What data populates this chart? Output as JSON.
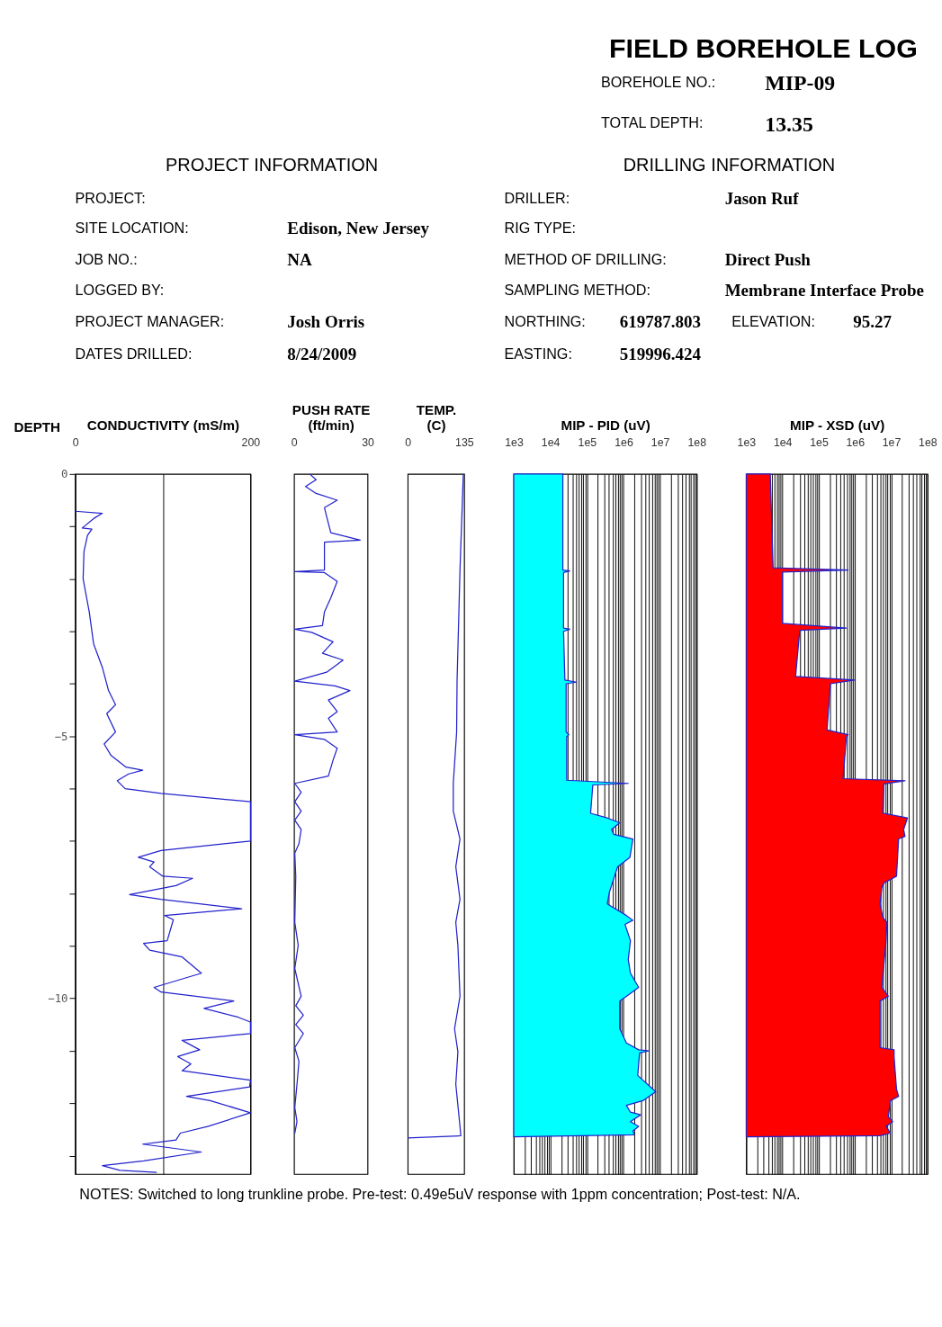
{
  "chart_data": [
    {
      "type": "other",
      "title": "FIELD BOREHOLE LOG",
      "annotations": [
        "BOREHOLE NO.:",
        "MIP-09",
        "TOTAL DEPTH:",
        "13.35",
        "PROJECT INFORMATION",
        "DRILLING INFORMATION",
        "PROJECT:",
        "SITE LOCATION:",
        "Edison, New Jersey",
        "JOB NO.:",
        "NA",
        "LOGGED BY:",
        "PROJECT MANAGER:",
        "Josh Orris",
        "DATES DRILLED:",
        "8/24/2009",
        "DRILLER:",
        "Jason Ruf",
        "RIG TYPE:",
        "METHOD OF DRILLING:",
        "Direct Push",
        "SAMPLING METHOD:",
        "Membrane Interface Probe",
        "NORTHING:",
        "619787.803",
        "ELEVATION:",
        "95.27",
        "EASTING:",
        "519996.424",
        "NOTES:  Switched to long trunkline probe.  Pre-test: 0.49e5uV response with 1ppm concentration; Post-test: N/A."
      ]
    },
    {
      "type": "line",
      "orientation": "horizontal",
      "xlabel": "CONDUCTIVITY (mS/m)",
      "ylabel": "DEPTH",
      "xlim": [
        0,
        200
      ],
      "xticks": [
        0,
        {
          "value": 100,
          "label": null
        },
        200
      ],
      "ylim": [
        -13.35,
        0
      ],
      "yticks": [
        0,
        {
          "value": -1,
          "label": null
        },
        {
          "value": -2,
          "label": null
        },
        {
          "value": -3,
          "label": null
        },
        {
          "value": -4,
          "label": null
        },
        -5,
        {
          "value": -6,
          "label": null
        },
        {
          "value": -7,
          "label": null
        },
        {
          "value": -8,
          "label": null
        },
        {
          "value": -9,
          "label": null
        },
        -10,
        {
          "value": -11,
          "label": null
        },
        {
          "value": -12,
          "label": null
        },
        {
          "value": -13,
          "label": null
        }
      ],
      "grid": "x",
      "series": [
        {
          "color": "#2222cc",
          "x": [
            -0.71,
            -0.75,
            -0.85,
            -1.03,
            -1.05,
            -1.17,
            -1.48,
            -2.0,
            -2.63,
            -3.24,
            -3.69,
            -4.13,
            -4.4,
            -4.57,
            -4.92,
            -5.15,
            -5.37,
            -5.59,
            -5.65,
            -5.72,
            -5.85,
            -6.0,
            -6.09,
            -6.25,
            -7.0,
            -7.18,
            -7.31,
            -7.4,
            -7.49,
            -7.67,
            -7.71,
            -7.85,
            -8.02,
            -8.11,
            -8.29,
            -8.42,
            -8.5,
            -8.9,
            -8.95,
            -9.08,
            -9.21,
            -9.52,
            -9.79,
            -9.88,
            -10.05,
            -10.19,
            -10.36,
            -10.45,
            -10.67,
            -10.8,
            -10.98,
            -11.11,
            -11.25,
            -11.38,
            -11.56,
            -11.69,
            -11.87,
            -11.95,
            -12.18,
            -12.44,
            -12.57,
            -12.7,
            -12.78,
            -12.93,
            -13.1,
            -13.19,
            -13.28,
            -13.32
          ],
          "values": [
            0,
            31,
            21,
            8,
            19,
            14,
            10,
            9,
            16,
            21,
            31,
            38,
            46,
            36,
            46,
            33,
            41,
            58,
            77,
            61,
            48,
            57,
            98,
            200,
            200,
            98,
            72,
            90,
            85,
            100,
            134,
            115,
            62,
            98,
            190,
            102,
            112,
            105,
            78,
            85,
            122,
            144,
            90,
            98,
            181,
            147,
            186,
            200,
            200,
            122,
            142,
            117,
            132,
            122,
            200,
            199,
            127,
            154,
            200,
            152,
            120,
            115,
            77,
            144,
            78,
            31,
            51,
            93
          ]
        }
      ]
    },
    {
      "type": "line",
      "orientation": "horizontal",
      "xlabel": "PUSH RATE (ft/min)",
      "xlim": [
        0,
        30
      ],
      "xticks": [
        0,
        30
      ],
      "ylim": [
        -13.35,
        0
      ],
      "tick_labels": "x",
      "series": [
        {
          "color": "#2222cc",
          "x": [
            0,
            -0.11,
            -0.24,
            -0.37,
            -0.5,
            -0.64,
            -0.81,
            -1.12,
            -1.26,
            -1.3,
            -1.52,
            -1.83,
            -1.86,
            -1.88,
            -2.05,
            -2.36,
            -2.63,
            -2.89,
            -2.96,
            -3.02,
            -3.2,
            -3.42,
            -3.55,
            -3.78,
            -3.95,
            -4.04,
            -4.13,
            -4.31,
            -4.53,
            -4.66,
            -4.92,
            -4.97,
            -5.06,
            -5.23,
            -5.46,
            -5.76,
            -5.9,
            -6.07,
            -6.25,
            -6.43,
            -6.6,
            -6.78,
            -7.05,
            -7.23,
            -7.67,
            -8.55,
            -8.99,
            -9.43,
            -9.96,
            -10.14,
            -10.32,
            -10.5,
            -10.67,
            -10.94,
            -11.2,
            -11.64,
            -12.08,
            -12.35,
            -12.57
          ],
          "values": [
            6.4,
            9,
            4.7,
            9,
            17.6,
            12.4,
            13.3,
            15,
            27,
            12.4,
            12.4,
            12.4,
            0.3,
            12.4,
            17.6,
            15,
            12.4,
            11.6,
            0.3,
            7.2,
            15.9,
            11.6,
            20,
            13.3,
            0.3,
            16.7,
            22.8,
            14,
            17.6,
            14,
            17.6,
            0.3,
            12.4,
            17.6,
            15.9,
            14,
            0.3,
            2.9,
            0.3,
            2.9,
            0.3,
            2.9,
            2,
            0.3,
            0.7,
            0.3,
            1.7,
            0.3,
            2.9,
            0.7,
            3.8,
            0.7,
            3.8,
            0.3,
            2,
            1.2,
            0.3,
            1.2,
            0.3
          ]
        }
      ]
    },
    {
      "type": "line",
      "orientation": "horizontal",
      "xlabel": "TEMP. (C)",
      "xlim": [
        0,
        135
      ],
      "xticks": [
        0,
        135
      ],
      "ylim": [
        -13.35,
        0
      ],
      "tick_labels": "x",
      "series": [
        {
          "color": "#2222cc",
          "x": [
            0,
            -1.83,
            -3.95,
            -4.92,
            -5.9,
            -6.43,
            -6.96,
            -7.49,
            -8.11,
            -8.55,
            -8.99,
            -9.96,
            -10.58,
            -11.02,
            -11.64,
            -12.44,
            -12.62,
            -12.66
          ],
          "values": [
            133,
            125,
            118,
            117,
            109,
            109,
            125,
            115,
            125,
            115,
            120,
            125,
            112,
            120,
            115,
            125,
            127,
            0
          ]
        }
      ]
    },
    {
      "type": "area",
      "orientation": "horizontal",
      "xlabel": "MIP - PID (uV)",
      "log": "x",
      "xlim": [
        1000,
        100000000
      ],
      "ylim": [
        -13.35,
        0
      ],
      "tick_labels": "x",
      "grid": "x",
      "xticks": [
        {
          "value": 1000,
          "label": "1e3"
        },
        {
          "value": 2000,
          "label": null
        },
        {
          "value": 3000,
          "label": null
        },
        {
          "value": 4000,
          "label": null
        },
        {
          "value": 5000,
          "label": null
        },
        {
          "value": 6000,
          "label": null
        },
        {
          "value": 7000,
          "label": null
        },
        {
          "value": 8000,
          "label": null
        },
        {
          "value": 9000,
          "label": null
        },
        {
          "value": 10000,
          "label": "1e4"
        },
        {
          "value": 20000,
          "label": null
        },
        {
          "value": 30000,
          "label": null
        },
        {
          "value": 40000,
          "label": null
        },
        {
          "value": 50000,
          "label": null
        },
        {
          "value": 60000,
          "label": null
        },
        {
          "value": 70000,
          "label": null
        },
        {
          "value": 80000,
          "label": null
        },
        {
          "value": 90000,
          "label": null
        },
        {
          "value": 100000,
          "label": "1e5"
        },
        {
          "value": 200000,
          "label": null
        },
        {
          "value": 300000,
          "label": null
        },
        {
          "value": 400000,
          "label": null
        },
        {
          "value": 500000,
          "label": null
        },
        {
          "value": 600000,
          "label": null
        },
        {
          "value": 700000,
          "label": null
        },
        {
          "value": 800000,
          "label": null
        },
        {
          "value": 900000,
          "label": null
        },
        {
          "value": 1000000,
          "label": "1e6"
        },
        {
          "value": 2000000,
          "label": null
        },
        {
          "value": 3000000,
          "label": null
        },
        {
          "value": 4000000,
          "label": null
        },
        {
          "value": 5000000,
          "label": null
        },
        {
          "value": 6000000,
          "label": null
        },
        {
          "value": 7000000,
          "label": null
        },
        {
          "value": 8000000,
          "label": null
        },
        {
          "value": 9000000,
          "label": null
        },
        {
          "value": 10000000,
          "label": "1e7"
        },
        {
          "value": 20000000,
          "label": null
        },
        {
          "value": 30000000,
          "label": null
        },
        {
          "value": 40000000,
          "label": null
        },
        {
          "value": 50000000,
          "label": null
        },
        {
          "value": 60000000,
          "label": null
        },
        {
          "value": 70000000,
          "label": null
        },
        {
          "value": 80000000,
          "label": null
        },
        {
          "value": 90000000,
          "label": null
        },
        {
          "value": 100000000,
          "label": "1e8"
        }
      ],
      "series": [
        {
          "color": "#00ffff",
          "x": [
            0,
            -1.83,
            -1.85,
            -1.88,
            -2.94,
            -2.96,
            -3.0,
            -3.93,
            -3.97,
            -4.0,
            -4.92,
            -4.97,
            -5.01,
            -5.84,
            -5.9,
            -5.93,
            -6.47,
            -6.56,
            -6.65,
            -6.78,
            -6.87,
            -6.96,
            -7.31,
            -7.49,
            -7.98,
            -8.2,
            -8.42,
            -8.51,
            -8.59,
            -8.9,
            -9.26,
            -9.52,
            -9.79,
            -9.96,
            -10.05,
            -10.58,
            -10.85,
            -10.98,
            -11.0,
            -11.04,
            -11.47,
            -11.56,
            -11.78,
            -11.95,
            -12.04,
            -12.17,
            -12.22,
            -12.35,
            -12.44,
            -12.53,
            -12.6,
            -12.64
          ],
          "values": [
            22000,
            22000,
            34000,
            23000,
            23000,
            34000,
            23000,
            25000,
            52000,
            27000,
            27000,
            32000,
            28000,
            28000,
            1350000,
            145000,
            126000,
            360000,
            790000,
            470000,
            540000,
            1800000,
            1500000,
            690000,
            410000,
            360000,
            1200000,
            1800000,
            1100000,
            1550000,
            1350000,
            1550000,
            2600000,
            1200000,
            790000,
            790000,
            1200000,
            2600000,
            5000000,
            2750000,
            2450000,
            3400000,
            7600000,
            3400000,
            1200000,
            1550000,
            2950000,
            1550000,
            2600000,
            1800000,
            2000000,
            1000
          ]
        }
      ]
    },
    {
      "type": "area",
      "orientation": "horizontal",
      "xlabel": "MIP - XSD (uV)",
      "log": "x",
      "xlim": [
        1000,
        100000000
      ],
      "ylim": [
        -13.35,
        0
      ],
      "tick_labels": "x",
      "grid": "x",
      "xticks": [
        {
          "value": 1000,
          "label": "1e3"
        },
        {
          "value": 2000,
          "label": null
        },
        {
          "value": 3000,
          "label": null
        },
        {
          "value": 4000,
          "label": null
        },
        {
          "value": 5000,
          "label": null
        },
        {
          "value": 6000,
          "label": null
        },
        {
          "value": 7000,
          "label": null
        },
        {
          "value": 8000,
          "label": null
        },
        {
          "value": 9000,
          "label": null
        },
        {
          "value": 10000,
          "label": "1e4"
        },
        {
          "value": 20000,
          "label": null
        },
        {
          "value": 30000,
          "label": null
        },
        {
          "value": 40000,
          "label": null
        },
        {
          "value": 50000,
          "label": null
        },
        {
          "value": 60000,
          "label": null
        },
        {
          "value": 70000,
          "label": null
        },
        {
          "value": 80000,
          "label": null
        },
        {
          "value": 90000,
          "label": null
        },
        {
          "value": 100000,
          "label": "1e5"
        },
        {
          "value": 200000,
          "label": null
        },
        {
          "value": 300000,
          "label": null
        },
        {
          "value": 400000,
          "label": null
        },
        {
          "value": 500000,
          "label": null
        },
        {
          "value": 600000,
          "label": null
        },
        {
          "value": 700000,
          "label": null
        },
        {
          "value": 800000,
          "label": null
        },
        {
          "value": 900000,
          "label": null
        },
        {
          "value": 1000000,
          "label": "1e6"
        },
        {
          "value": 2000000,
          "label": null
        },
        {
          "value": 3000000,
          "label": null
        },
        {
          "value": 4000000,
          "label": null
        },
        {
          "value": 5000000,
          "label": null
        },
        {
          "value": 6000000,
          "label": null
        },
        {
          "value": 7000000,
          "label": null
        },
        {
          "value": 8000000,
          "label": null
        },
        {
          "value": 9000000,
          "label": null
        },
        {
          "value": 10000000,
          "label": "1e7"
        },
        {
          "value": 20000000,
          "label": null
        },
        {
          "value": 30000000,
          "label": null
        },
        {
          "value": 40000000,
          "label": null
        },
        {
          "value": 50000000,
          "label": null
        },
        {
          "value": 60000000,
          "label": null
        },
        {
          "value": 70000000,
          "label": null
        },
        {
          "value": 80000000,
          "label": null
        },
        {
          "value": 90000000,
          "label": null
        },
        {
          "value": 100000000,
          "label": "1e8"
        }
      ],
      "series": [
        {
          "color": "#ff0000",
          "x": [
            0,
            -1.79,
            -1.83,
            -1.87,
            -2.85,
            -2.94,
            -2.98,
            -3.86,
            -3.93,
            -4.0,
            -4.88,
            -4.97,
            -5.01,
            -5.81,
            -5.85,
            -5.91,
            -6.47,
            -6.56,
            -6.78,
            -6.91,
            -6.96,
            -7.67,
            -7.8,
            -7.89,
            -8.2,
            -8.46,
            -8.55,
            -8.9,
            -9.79,
            -9.96,
            -10.05,
            -10.94,
            -10.98,
            -11.11,
            -11.73,
            -11.87,
            -11.95,
            -12.26,
            -12.35,
            -12.44,
            -12.57,
            -12.62,
            -12.64
          ],
          "values": [
            4600,
            5500,
            650000,
            10000,
            10000,
            580000,
            30000,
            23000,
            980000,
            210000,
            170000,
            650000,
            580000,
            470000,
            24000000,
            6300000,
            5900000,
            28000000,
            22000000,
            24000000,
            16000000,
            14000000,
            6300000,
            5500000,
            4900000,
            5900000,
            7600000,
            7200000,
            5500000,
            8300000,
            4900000,
            4900000,
            12000000,
            12000000,
            14000000,
            16000000,
            9500000,
            8300000,
            11000000,
            7200000,
            9500000,
            4900000,
            1000
          ]
        }
      ]
    }
  ]
}
